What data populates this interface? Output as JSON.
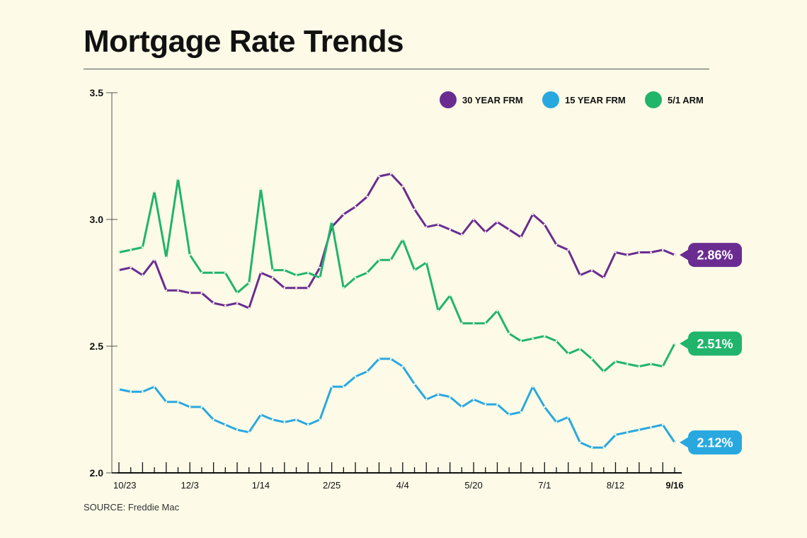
{
  "title": "Mortgage Rate Trends",
  "source": "SOURCE: Freddie Mac",
  "colors": {
    "frm30": "#6a2c91",
    "frm15": "#29a8e0",
    "arm51": "#21b46b",
    "background": "#fdfbe8"
  },
  "chart_data": {
    "type": "line",
    "title": "Mortgage Rate Trends",
    "xlabel": "",
    "ylabel": "",
    "ylim": [
      2.0,
      3.5
    ],
    "y_ticks": [
      "2.0",
      "2.5",
      "3.0",
      "3.5"
    ],
    "x_tick_labels": [
      {
        "label": "10/23",
        "index": 0
      },
      {
        "label": "12/3",
        "index": 6
      },
      {
        "label": "1/14",
        "index": 12
      },
      {
        "label": "2/25",
        "index": 18
      },
      {
        "label": "4/4",
        "index": 24
      },
      {
        "label": "5/20",
        "index": 30
      },
      {
        "label": "7/1",
        "index": 36
      },
      {
        "label": "8/12",
        "index": 42
      },
      {
        "label": "9/16",
        "index": 47
      }
    ],
    "legend_position": "top-right",
    "series": [
      {
        "name": "30 YEAR FRM",
        "color": "#6a2c91",
        "end_label": "2.86%",
        "values": [
          2.8,
          2.81,
          2.78,
          2.84,
          2.72,
          2.72,
          2.71,
          2.71,
          2.67,
          2.66,
          2.67,
          2.65,
          2.79,
          2.77,
          2.73,
          2.73,
          2.73,
          2.81,
          2.97,
          3.02,
          3.05,
          3.09,
          3.17,
          3.18,
          3.13,
          3.04,
          2.97,
          2.98,
          2.96,
          2.94,
          3.0,
          2.95,
          2.99,
          2.96,
          2.93,
          3.02,
          2.98,
          2.9,
          2.88,
          2.78,
          2.8,
          2.77,
          2.87,
          2.86,
          2.87,
          2.87,
          2.88,
          2.86
        ]
      },
      {
        "name": "15 YEAR FRM",
        "color": "#29a8e0",
        "end_label": "2.12%",
        "values": [
          2.33,
          2.32,
          2.32,
          2.34,
          2.28,
          2.28,
          2.26,
          2.26,
          2.21,
          2.19,
          2.17,
          2.16,
          2.23,
          2.21,
          2.2,
          2.21,
          2.19,
          2.21,
          2.34,
          2.34,
          2.38,
          2.4,
          2.45,
          2.45,
          2.42,
          2.35,
          2.29,
          2.31,
          2.3,
          2.26,
          2.29,
          2.27,
          2.27,
          2.23,
          2.24,
          2.34,
          2.26,
          2.2,
          2.22,
          2.12,
          2.1,
          2.1,
          2.15,
          2.16,
          2.17,
          2.18,
          2.19,
          2.12
        ]
      },
      {
        "name": "5/1 ARM",
        "color": "#21b46b",
        "end_label": "2.51%",
        "values": [
          2.87,
          2.88,
          2.89,
          3.11,
          2.85,
          3.16,
          2.86,
          2.79,
          2.79,
          2.79,
          2.71,
          2.75,
          3.12,
          2.8,
          2.8,
          2.78,
          2.79,
          2.77,
          2.99,
          2.73,
          2.77,
          2.79,
          2.84,
          2.84,
          2.92,
          2.8,
          2.83,
          2.64,
          2.7,
          2.59,
          2.59,
          2.59,
          2.64,
          2.55,
          2.52,
          2.53,
          2.54,
          2.52,
          2.47,
          2.49,
          2.45,
          2.4,
          2.44,
          2.43,
          2.42,
          2.43,
          2.42,
          2.51
        ]
      }
    ]
  }
}
